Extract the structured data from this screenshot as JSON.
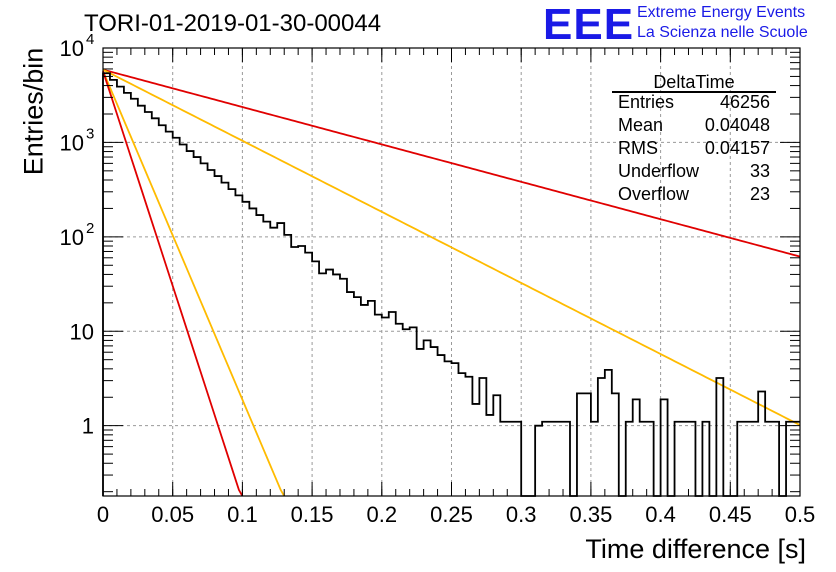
{
  "header": {
    "title": "TORI-01-2019-01-30-00044",
    "logo_text": "EEE",
    "logo_line1": "Extreme Energy Events",
    "logo_line2": "La Scienza nelle Scuole"
  },
  "stats_box": {
    "title": "DeltaTime",
    "rows": [
      {
        "label": "Entries",
        "value": "46256"
      },
      {
        "label": "Mean",
        "value": "0.04048"
      },
      {
        "label": "RMS",
        "value": "0.04157"
      },
      {
        "label": "Underflow",
        "value": "33"
      },
      {
        "label": "Overflow",
        "value": "23"
      }
    ]
  },
  "colors": {
    "histogram": "#000000",
    "fit": "#000000",
    "red": "#e00000",
    "orange": "#ffbb00",
    "grid": "#9a9a9a"
  },
  "chart_data": {
    "type": "line",
    "xlabel": "Time difference [s]",
    "ylabel": "Entries/bin",
    "xlim": [
      0,
      0.5
    ],
    "ylim": [
      0.18,
      10000
    ],
    "yscale": "log",
    "grid": true,
    "x_ticks": [
      "0",
      "0.05",
      "0.1",
      "0.15",
      "0.2",
      "0.25",
      "0.3",
      "0.35",
      "0.4",
      "0.45",
      "0.5"
    ],
    "y_ticks": [
      {
        "value": 1,
        "label": "1"
      },
      {
        "value": 10,
        "label": "10"
      },
      {
        "value": 100,
        "label": "10",
        "exp": "2"
      },
      {
        "value": 1000,
        "label": "10",
        "exp": "3"
      },
      {
        "value": 10000,
        "label": "10",
        "exp": "4"
      }
    ],
    "histogram": {
      "bin_width": 0.005,
      "values": [
        5400,
        4600,
        3900,
        3350,
        2900,
        2450,
        2100,
        1800,
        1520,
        1300,
        1120,
        950,
        810,
        700,
        600,
        510,
        440,
        375,
        320,
        275,
        235,
        200,
        170,
        145,
        125,
        140,
        105,
        78,
        80,
        68,
        55,
        41,
        45,
        40,
        36,
        26,
        23,
        19,
        21,
        15,
        14,
        16,
        12,
        10.5,
        11,
        6.5,
        8,
        6.8,
        5.6,
        4.8,
        4.6,
        3.6,
        3.3,
        1.7,
        3.2,
        1.3,
        2.1,
        1.1,
        1.1,
        1.1,
        0.15,
        0.15,
        1.0,
        1.1,
        1.1,
        1.1,
        1.1,
        0.15,
        2.2,
        2.2,
        1.1,
        3.2,
        3.9,
        2.2,
        0.15,
        1.1,
        1.9,
        1.1,
        1.1,
        0.15,
        1.9,
        0.15,
        1.1,
        1.1,
        1.1,
        0.15,
        1.1,
        0.15,
        3.2,
        0.15,
        0.15,
        1.1,
        1.1,
        1.1,
        2.3,
        1.1,
        1.1,
        0.15,
        1.1,
        1.1
      ]
    },
    "lines": [
      {
        "color": "red",
        "x0": 0,
        "y0": 5900,
        "slope_per_s": -3.96
      },
      {
        "color": "orange",
        "x0": 0,
        "y0": 5900,
        "slope_per_s": -7.53
      },
      {
        "color": "black",
        "x0": 0,
        "y0": 5500,
        "slope_per_s": -10.6
      },
      {
        "color": "orange",
        "x0": 0,
        "y0": 5700,
        "slope_per_s": -34.8
      },
      {
        "color": "red",
        "x0": 0,
        "y0": 5700,
        "slope_per_s": -45.5
      }
    ]
  }
}
